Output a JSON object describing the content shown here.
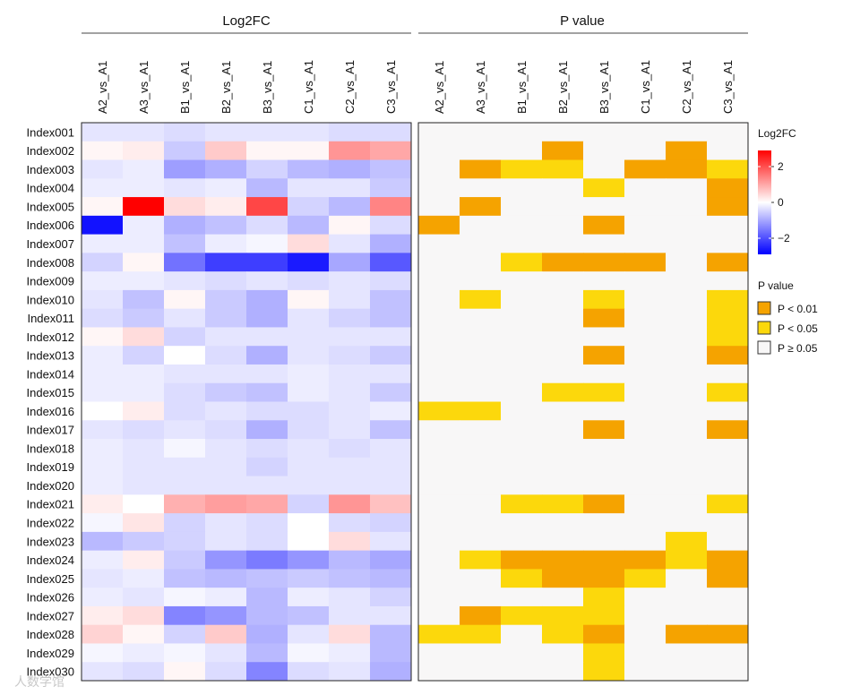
{
  "chart_data": [
    {
      "type": "heatmap",
      "title": "Log2FC",
      "columns": [
        "A2_vs_A1",
        "A3_vs_A1",
        "B1_vs_A1",
        "B2_vs_A1",
        "B3_vs_A1",
        "C1_vs_A1",
        "C2_vs_A1",
        "C3_vs_A1"
      ],
      "rows": [
        "Index001",
        "Index002",
        "Index003",
        "Index004",
        "Index005",
        "Index006",
        "Index007",
        "Index008",
        "Index009",
        "Index010",
        "Index011",
        "Index012",
        "Index013",
        "Index014",
        "Index015",
        "Index016",
        "Index017",
        "Index018",
        "Index019",
        "Index020",
        "Index021",
        "Index022",
        "Index023",
        "Index024",
        "Index025",
        "Index026",
        "Index027",
        "Index028",
        "Index029",
        "Index030"
      ],
      "values": [
        [
          -0.3,
          -0.3,
          -0.4,
          -0.3,
          -0.3,
          -0.3,
          -0.4,
          -0.4
        ],
        [
          0.1,
          0.2,
          -0.6,
          0.6,
          0.1,
          0.1,
          1.2,
          1.0
        ],
        [
          -0.3,
          -0.2,
          -1.1,
          -0.9,
          -0.5,
          -0.8,
          -0.9,
          -0.7
        ],
        [
          -0.2,
          -0.2,
          -0.3,
          -0.2,
          -0.8,
          -0.3,
          -0.3,
          -0.6
        ],
        [
          0.1,
          2.9,
          0.4,
          0.2,
          2.1,
          -0.5,
          -0.8,
          1.4
        ],
        [
          -2.7,
          -0.2,
          -0.9,
          -0.7,
          -0.4,
          -0.8,
          0.1,
          -0.4
        ],
        [
          -0.2,
          -0.2,
          -0.7,
          -0.2,
          -0.1,
          0.4,
          -0.3,
          -0.9
        ],
        [
          -0.5,
          0.1,
          -1.6,
          -2.2,
          -2.2,
          -2.6,
          -1.0,
          -1.9
        ],
        [
          -0.2,
          -0.2,
          -0.3,
          -0.4,
          -0.3,
          -0.4,
          -0.3,
          -0.4
        ],
        [
          -0.3,
          -0.7,
          0.1,
          -0.6,
          -0.9,
          0.1,
          -0.3,
          -0.7
        ],
        [
          -0.4,
          -0.6,
          -0.3,
          -0.6,
          -0.9,
          -0.3,
          -0.5,
          -0.7
        ],
        [
          0.1,
          0.4,
          -0.5,
          -0.3,
          -0.3,
          -0.3,
          -0.3,
          -0.3
        ],
        [
          -0.2,
          -0.5,
          0.0,
          -0.4,
          -0.9,
          -0.3,
          -0.4,
          -0.6
        ],
        [
          -0.2,
          -0.2,
          -0.3,
          -0.3,
          -0.3,
          -0.2,
          -0.3,
          -0.3
        ],
        [
          -0.2,
          -0.2,
          -0.4,
          -0.6,
          -0.7,
          -0.2,
          -0.3,
          -0.6
        ],
        [
          0.0,
          0.2,
          -0.4,
          -0.3,
          -0.4,
          -0.4,
          -0.3,
          -0.2
        ],
        [
          -0.3,
          -0.4,
          -0.3,
          -0.4,
          -0.9,
          -0.4,
          -0.3,
          -0.7
        ],
        [
          -0.2,
          -0.3,
          -0.1,
          -0.3,
          -0.4,
          -0.3,
          -0.4,
          -0.3
        ],
        [
          -0.2,
          -0.3,
          -0.3,
          -0.3,
          -0.5,
          -0.3,
          -0.3,
          -0.3
        ],
        [
          -0.2,
          -0.3,
          -0.3,
          -0.3,
          -0.3,
          -0.3,
          -0.3,
          -0.3
        ],
        [
          0.2,
          0.0,
          0.9,
          1.1,
          1.0,
          -0.5,
          1.2,
          0.7
        ],
        [
          -0.1,
          0.3,
          -0.5,
          -0.3,
          -0.4,
          0.0,
          -0.4,
          -0.5
        ],
        [
          -0.8,
          -0.6,
          -0.5,
          -0.3,
          -0.4,
          0.0,
          0.4,
          -0.3
        ],
        [
          -0.2,
          0.2,
          -0.6,
          -1.2,
          -1.5,
          -1.2,
          -0.8,
          -1.0
        ],
        [
          -0.3,
          -0.2,
          -0.7,
          -0.8,
          -0.7,
          -0.6,
          -0.7,
          -0.8
        ],
        [
          -0.2,
          -0.3,
          -0.1,
          -0.2,
          -0.8,
          -0.2,
          -0.3,
          -0.5
        ],
        [
          0.2,
          0.4,
          -1.4,
          -1.2,
          -0.8,
          -0.7,
          -0.3,
          -0.3
        ],
        [
          0.5,
          0.1,
          -0.5,
          0.6,
          -0.9,
          -0.3,
          0.4,
          -0.8
        ],
        [
          -0.1,
          -0.2,
          -0.1,
          -0.3,
          -0.8,
          -0.1,
          -0.2,
          -0.8
        ],
        [
          -0.3,
          -0.4,
          0.1,
          -0.4,
          -1.4,
          -0.4,
          -0.3,
          -0.9
        ]
      ],
      "color_range": [
        -2.9,
        2.9
      ],
      "colors": {
        "low": "#0000ff",
        "mid": "#ffffff",
        "high": "#ff0000"
      }
    },
    {
      "type": "heatmap",
      "title": "P value",
      "columns": [
        "A2_vs_A1",
        "A3_vs_A1",
        "B1_vs_A1",
        "B2_vs_A1",
        "B3_vs_A1",
        "C1_vs_A1",
        "C2_vs_A1",
        "C3_vs_A1"
      ],
      "rows": [
        "Index001",
        "Index002",
        "Index003",
        "Index004",
        "Index005",
        "Index006",
        "Index007",
        "Index008",
        "Index009",
        "Index010",
        "Index011",
        "Index012",
        "Index013",
        "Index014",
        "Index015",
        "Index016",
        "Index017",
        "Index018",
        "Index019",
        "Index020",
        "Index021",
        "Index022",
        "Index023",
        "Index024",
        "Index025",
        "Index026",
        "Index027",
        "Index028",
        "Index029",
        "Index030"
      ],
      "categories": [
        "P < 0.01",
        "P < 0.05",
        "P ≥ 0.05"
      ],
      "category_colors": [
        "#f5a300",
        "#fcd80c",
        "#f8f7f7"
      ],
      "values": [
        [
          2,
          2,
          2,
          2,
          2,
          2,
          2,
          2
        ],
        [
          2,
          2,
          2,
          0,
          2,
          2,
          0,
          2
        ],
        [
          2,
          0,
          1,
          1,
          2,
          0,
          0,
          1
        ],
        [
          2,
          2,
          2,
          2,
          1,
          2,
          2,
          0
        ],
        [
          2,
          0,
          2,
          2,
          2,
          2,
          2,
          0
        ],
        [
          0,
          2,
          2,
          2,
          0,
          2,
          2,
          2
        ],
        [
          2,
          2,
          2,
          2,
          2,
          2,
          2,
          2
        ],
        [
          2,
          2,
          1,
          0,
          0,
          0,
          2,
          0
        ],
        [
          2,
          2,
          2,
          2,
          2,
          2,
          2,
          2
        ],
        [
          2,
          1,
          2,
          2,
          1,
          2,
          2,
          1
        ],
        [
          2,
          2,
          2,
          2,
          0,
          2,
          2,
          1
        ],
        [
          2,
          2,
          2,
          2,
          2,
          2,
          2,
          1
        ],
        [
          2,
          2,
          2,
          2,
          0,
          2,
          2,
          0
        ],
        [
          2,
          2,
          2,
          2,
          2,
          2,
          2,
          2
        ],
        [
          2,
          2,
          2,
          1,
          1,
          2,
          2,
          1
        ],
        [
          1,
          1,
          2,
          2,
          2,
          2,
          2,
          2
        ],
        [
          2,
          2,
          2,
          2,
          0,
          2,
          2,
          0
        ],
        [
          2,
          2,
          2,
          2,
          2,
          2,
          2,
          2
        ],
        [
          2,
          2,
          2,
          2,
          2,
          2,
          2,
          2
        ],
        [
          2,
          2,
          2,
          2,
          2,
          2,
          2,
          2
        ],
        [
          2,
          2,
          1,
          1,
          0,
          2,
          2,
          1
        ],
        [
          2,
          2,
          2,
          2,
          2,
          2,
          2,
          2
        ],
        [
          2,
          2,
          2,
          2,
          2,
          2,
          1,
          2
        ],
        [
          2,
          1,
          0,
          0,
          0,
          0,
          1,
          0
        ],
        [
          2,
          2,
          1,
          0,
          0,
          1,
          2,
          0
        ],
        [
          2,
          2,
          2,
          2,
          1,
          2,
          2,
          2
        ],
        [
          2,
          0,
          1,
          1,
          1,
          2,
          2,
          2
        ],
        [
          1,
          1,
          2,
          1,
          0,
          2,
          0,
          0
        ],
        [
          2,
          2,
          2,
          2,
          1,
          2,
          2,
          2
        ],
        [
          2,
          2,
          2,
          2,
          1,
          2,
          2,
          2
        ]
      ]
    }
  ],
  "legend_log2fc": {
    "title": "Log2FC",
    "ticks": [
      "2",
      "0",
      "−2"
    ],
    "tick_values": [
      2,
      0,
      -2
    ]
  },
  "legend_pvalue": {
    "title": "P value",
    "items": [
      "P < 0.01",
      "P < 0.05",
      "P ≥ 0.05"
    ]
  },
  "watermark": "人数学馆"
}
